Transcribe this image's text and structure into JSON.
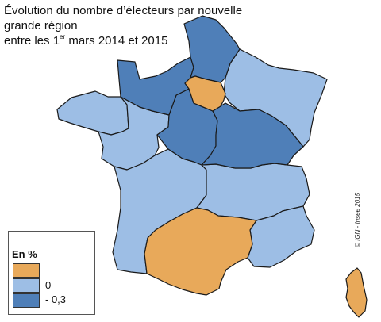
{
  "title": {
    "line1": "Évolution du nombre d’électeurs par nouvelle grande région",
    "line2_prefix": "entre les 1",
    "line2_sup": "er",
    "line2_suffix": " mars 2014 et 2015"
  },
  "legend": {
    "title": "En %",
    "items": [
      {
        "label": "",
        "color": "#e8a95a"
      },
      {
        "label": "0",
        "color": "#9dbee5"
      },
      {
        "label": "- 0,3",
        "color": "#4f7fb8"
      }
    ]
  },
  "credit": "© IGN - Insee 2015",
  "colors": {
    "positive": "#e8a95a",
    "zero": "#9dbee5",
    "negative": "#4f7fb8",
    "border": "#1a1a1a"
  },
  "regions": [
    {
      "id": "hauts-de-france",
      "class": "negative"
    },
    {
      "id": "normandie",
      "class": "negative"
    },
    {
      "id": "ile-de-france",
      "class": "positive"
    },
    {
      "id": "grand-est",
      "class": "zero"
    },
    {
      "id": "bretagne",
      "class": "zero"
    },
    {
      "id": "pays-de-la-loire",
      "class": "zero"
    },
    {
      "id": "centre-val-de-loire",
      "class": "negative"
    },
    {
      "id": "bourgogne-franche-comte",
      "class": "negative"
    },
    {
      "id": "nouvelle-aquitaine",
      "class": "zero"
    },
    {
      "id": "auvergne-rhone-alpes",
      "class": "zero"
    },
    {
      "id": "occitanie",
      "class": "positive"
    },
    {
      "id": "provence-alpes-cote-d-azur",
      "class": "zero"
    },
    {
      "id": "corse",
      "class": "positive"
    }
  ]
}
